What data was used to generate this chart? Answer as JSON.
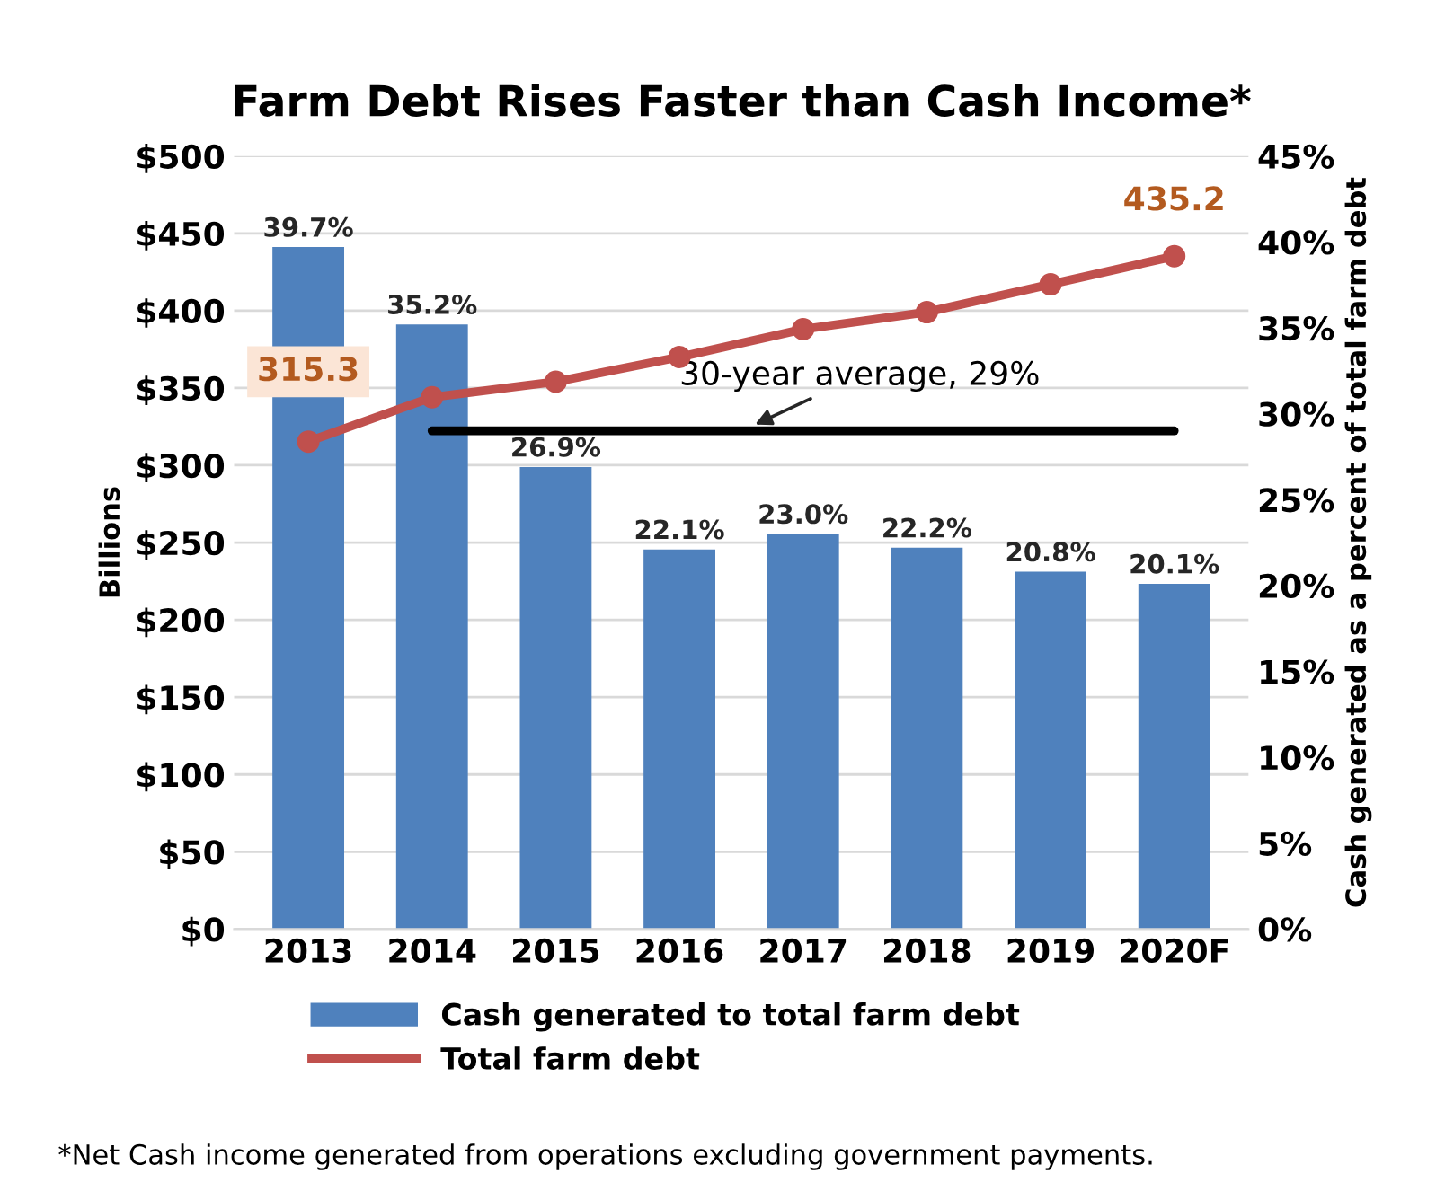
{
  "chart_data": {
    "type": "bar",
    "title": "Farm Debt Rises Faster than Cash Income*",
    "categories": [
      "2013",
      "2014",
      "2015",
      "2016",
      "2017",
      "2018",
      "2019",
      "2020F"
    ],
    "series": [
      {
        "name": "Cash generated to total farm debt",
        "axis": "y2",
        "color": "#4f81bd",
        "values": [
          39.7,
          35.2,
          26.9,
          22.1,
          23.0,
          22.2,
          20.8,
          20.1
        ],
        "value_labels": [
          "39.7%",
          "35.2%",
          "26.9%",
          "22.1%",
          "23.0%",
          "22.2%",
          "20.8%",
          "20.1%"
        ]
      },
      {
        "name": "Total farm debt",
        "type": "line",
        "color": "#c0504d",
        "values": [
          315.3,
          344,
          354,
          370,
          388,
          399,
          417,
          435.2
        ],
        "value_labels": [
          "315.3",
          null,
          null,
          null,
          null,
          null,
          null,
          "435.2"
        ],
        "marker": "circle"
      }
    ],
    "ylabel": "Billions",
    "y2label": "Cash generated as a percent of total farm debt",
    "ylim": [
      0,
      500
    ],
    "yticks": [
      {
        "value": 0,
        "label": "$0"
      },
      {
        "value": 50,
        "label": "$50"
      },
      {
        "value": 100,
        "label": "$100"
      },
      {
        "value": 150,
        "label": "$150"
      },
      {
        "value": 200,
        "label": "$200"
      },
      {
        "value": 250,
        "label": "$250"
      },
      {
        "value": 300,
        "label": "$300"
      },
      {
        "value": 350,
        "label": "$350"
      },
      {
        "value": 400,
        "label": "$400"
      },
      {
        "value": 450,
        "label": "$450"
      },
      {
        "value": 500,
        "label": "$500"
      }
    ],
    "y2lim": [
      0,
      45
    ],
    "y2ticks": [
      {
        "value": 0,
        "label": "0%"
      },
      {
        "value": 5,
        "label": "5%"
      },
      {
        "value": 10,
        "label": "10%"
      },
      {
        "value": 15,
        "label": "15%"
      },
      {
        "value": 20,
        "label": "20%"
      },
      {
        "value": 25,
        "label": "25%"
      },
      {
        "value": 30,
        "label": "30%"
      },
      {
        "value": 35,
        "label": "35%"
      },
      {
        "value": 40,
        "label": "40%"
      },
      {
        "value": 45,
        "label": "45%"
      }
    ],
    "ref_lines": [
      {
        "axis": "y2",
        "value": 29,
        "label": "30-year average, 29%",
        "color": "#000000"
      }
    ],
    "grid": "y",
    "legend": "bottom",
    "annotations": [
      "*Net Cash income generated from operations excluding government payments."
    ]
  }
}
